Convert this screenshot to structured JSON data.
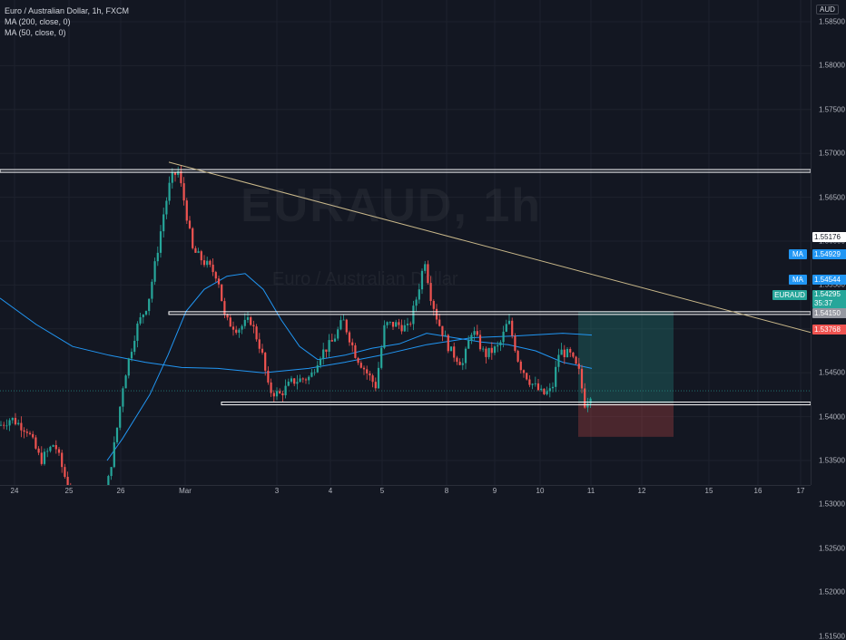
{
  "legend": {
    "title": "Euro / Australian Dollar, 1h, FXCM",
    "ma200": "MA (200, close, 0)",
    "ma50": "MA (50, close, 0)"
  },
  "watermark": {
    "symbol": "EURAUD",
    "interval": "1h",
    "subtitle": "Euro / Australian Dollar"
  },
  "currency": "AUD",
  "price_ticks": [
    "1.58500",
    "1.58000",
    "1.57500",
    "1.57000",
    "1.56500",
    "1.56000",
    "1.55500",
    "1.55000",
    "1.54500",
    "1.54000",
    "1.53500",
    "1.53000",
    "1.52500",
    "1.52000",
    "1.51500"
  ],
  "time_ticks": [
    "24",
    "25",
    "26",
    "Mar",
    "3",
    "4",
    "5",
    "8",
    "9",
    "10",
    "11",
    "12",
    "15",
    "16",
    "17"
  ],
  "price_labels": {
    "resistance": {
      "value": "1.55176",
      "color": "#ffffff",
      "text_color": "#131722"
    },
    "ma200": {
      "tag": "MA",
      "value": "1.54929",
      "color": "#2196f3"
    },
    "ma50": {
      "tag": "MA",
      "value": "1.54544",
      "color": "#2196f3"
    },
    "current": {
      "tag": "EURAUD",
      "value": "1.54295",
      "countdown": "35:37",
      "color": "#26a69a"
    },
    "entry": {
      "value": "1.54150",
      "color": "#9598a1"
    },
    "stop": {
      "value": "1.53768",
      "color": "#ef5350"
    }
  },
  "colors": {
    "up": "#26a69a",
    "down": "#ef5350",
    "ma": "#2196f3",
    "trend": "#c9b88a",
    "level": "#ffffff"
  },
  "chart_data": {
    "type": "candlestick",
    "symbol": "EURAUD",
    "interval": "1h",
    "ylim": [
      1.5125,
      1.5875
    ],
    "horizontal_levels": [
      1.568,
      1.5518,
      1.5415
    ],
    "trendline": {
      "from": [
        "Feb 26",
        1.569
      ],
      "to": [
        "Mar 16",
        1.5495
      ]
    },
    "position": {
      "entry": 1.5415,
      "target": 1.552,
      "stop": 1.5377
    },
    "key_points": [
      {
        "date": "Feb 24",
        "price": 1.54
      },
      {
        "date": "Feb 25",
        "price": 1.526
      },
      {
        "date": "Feb 26",
        "price": 1.55
      },
      {
        "date": "Mar 1",
        "price": 1.568
      },
      {
        "date": "Mar 3",
        "price": 1.542
      },
      {
        "date": "Mar 5",
        "price": 1.552
      },
      {
        "date": "Mar 8",
        "price": 1.56
      },
      {
        "date": "Mar 10",
        "price": 1.542
      },
      {
        "date": "Mar 11",
        "price": 1.54295
      }
    ]
  }
}
